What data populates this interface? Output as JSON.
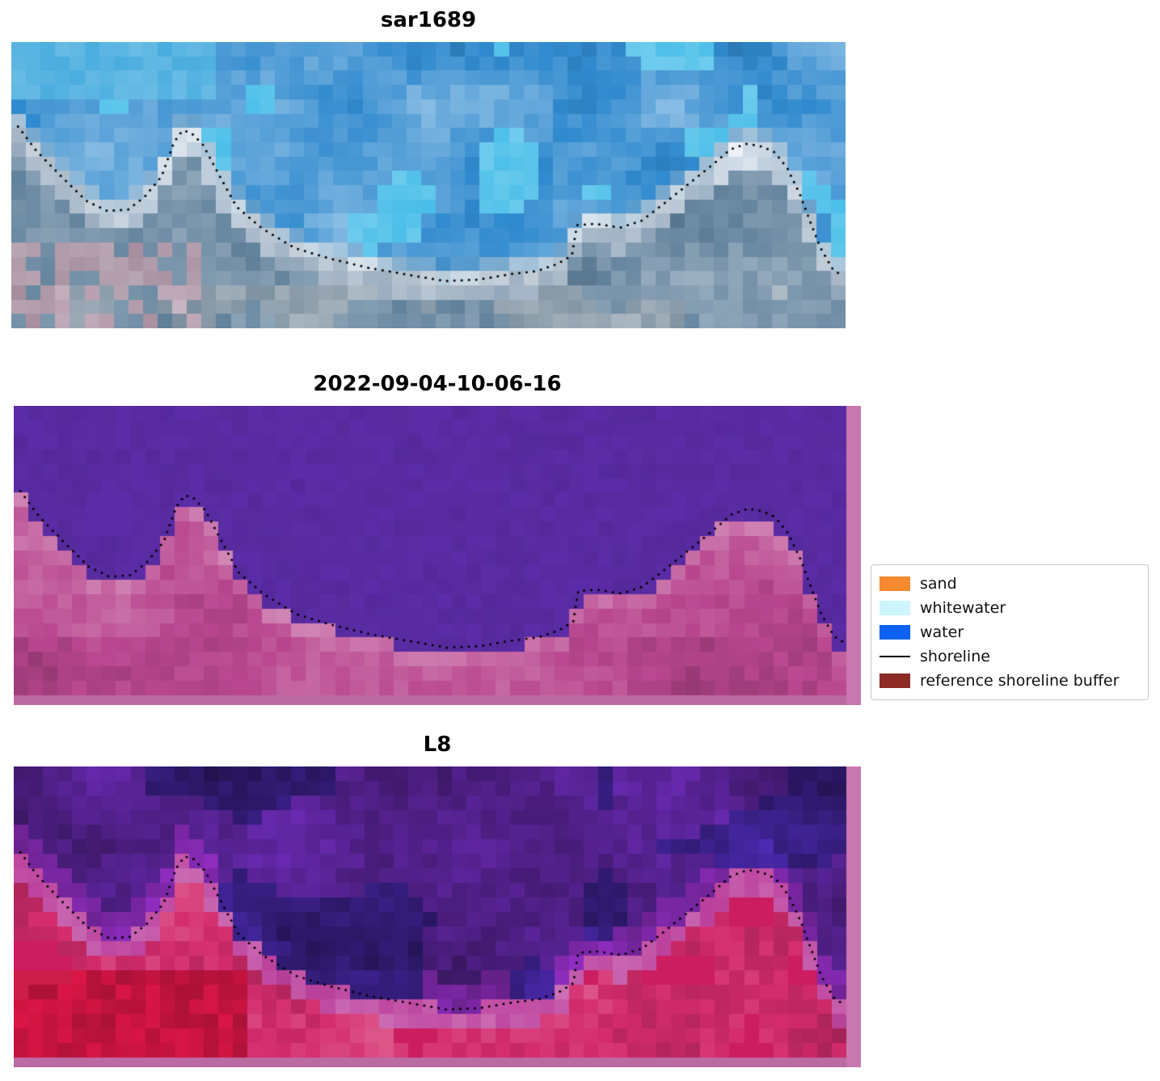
{
  "chart_data": {
    "type": "heatmap",
    "layout": "three vertically stacked raster image panels sharing a dotted detected-shoreline overlay; legend box at middle right; white figure background",
    "panels": [
      {
        "title": "sar1689",
        "kind": "SAR backscatter image",
        "description": "blue water in upper region, bright white whitewater band along the shoreline, grey-blue land below, pinkish-grey patches lower left"
      },
      {
        "title": "2022-09-04-10-06-16",
        "kind": "classified image",
        "description": "uniform violet-purple water region above the shoreline, pink reference-shoreline-buffer land region below, pink buffer strips along right and bottom edges"
      },
      {
        "title": "L8",
        "kind": "Landsat-8 false-colour image",
        "description": "purple water above the shoreline, pink transition band, red/crimson land below with deep red patch lower left, pink buffer strips along right and bottom edges"
      }
    ],
    "legend": {
      "position": "middle right",
      "items": [
        {
          "label": "sand",
          "swatch": "patch",
          "color": "#f7892f"
        },
        {
          "label": "whitewater",
          "swatch": "patch",
          "color": "#cdf5fd"
        },
        {
          "label": "water",
          "swatch": "patch",
          "color": "#0c62f2"
        },
        {
          "label": "shoreline",
          "swatch": "line",
          "color": "#000000"
        },
        {
          "label": "reference shoreline buffer",
          "swatch": "patch",
          "color": "#8c2a26"
        }
      ]
    },
    "shoreline_normalized": [
      [
        0.008,
        0.295
      ],
      [
        0.03,
        0.38
      ],
      [
        0.06,
        0.47
      ],
      [
        0.09,
        0.555
      ],
      [
        0.115,
        0.59
      ],
      [
        0.14,
        0.585
      ],
      [
        0.16,
        0.54
      ],
      [
        0.18,
        0.47
      ],
      [
        0.195,
        0.35
      ],
      [
        0.205,
        0.31
      ],
      [
        0.215,
        0.315
      ],
      [
        0.23,
        0.36
      ],
      [
        0.25,
        0.47
      ],
      [
        0.27,
        0.575
      ],
      [
        0.3,
        0.65
      ],
      [
        0.34,
        0.72
      ],
      [
        0.38,
        0.755
      ],
      [
        0.43,
        0.79
      ],
      [
        0.48,
        0.815
      ],
      [
        0.52,
        0.835
      ],
      [
        0.56,
        0.83
      ],
      [
        0.6,
        0.81
      ],
      [
        0.63,
        0.8
      ],
      [
        0.655,
        0.775
      ],
      [
        0.672,
        0.745
      ],
      [
        0.678,
        0.64
      ],
      [
        0.7,
        0.635
      ],
      [
        0.73,
        0.648
      ],
      [
        0.755,
        0.625
      ],
      [
        0.78,
        0.57
      ],
      [
        0.81,
        0.5
      ],
      [
        0.84,
        0.43
      ],
      [
        0.862,
        0.375
      ],
      [
        0.882,
        0.355
      ],
      [
        0.9,
        0.365
      ],
      [
        0.915,
        0.385
      ],
      [
        0.93,
        0.44
      ],
      [
        0.945,
        0.53
      ],
      [
        0.958,
        0.63
      ],
      [
        0.97,
        0.72
      ],
      [
        0.985,
        0.795
      ],
      [
        0.998,
        0.82
      ]
    ],
    "buffer_strip_color_right": "#c878ae",
    "buffer_strip_color_bottom": "#bc6ba2"
  }
}
